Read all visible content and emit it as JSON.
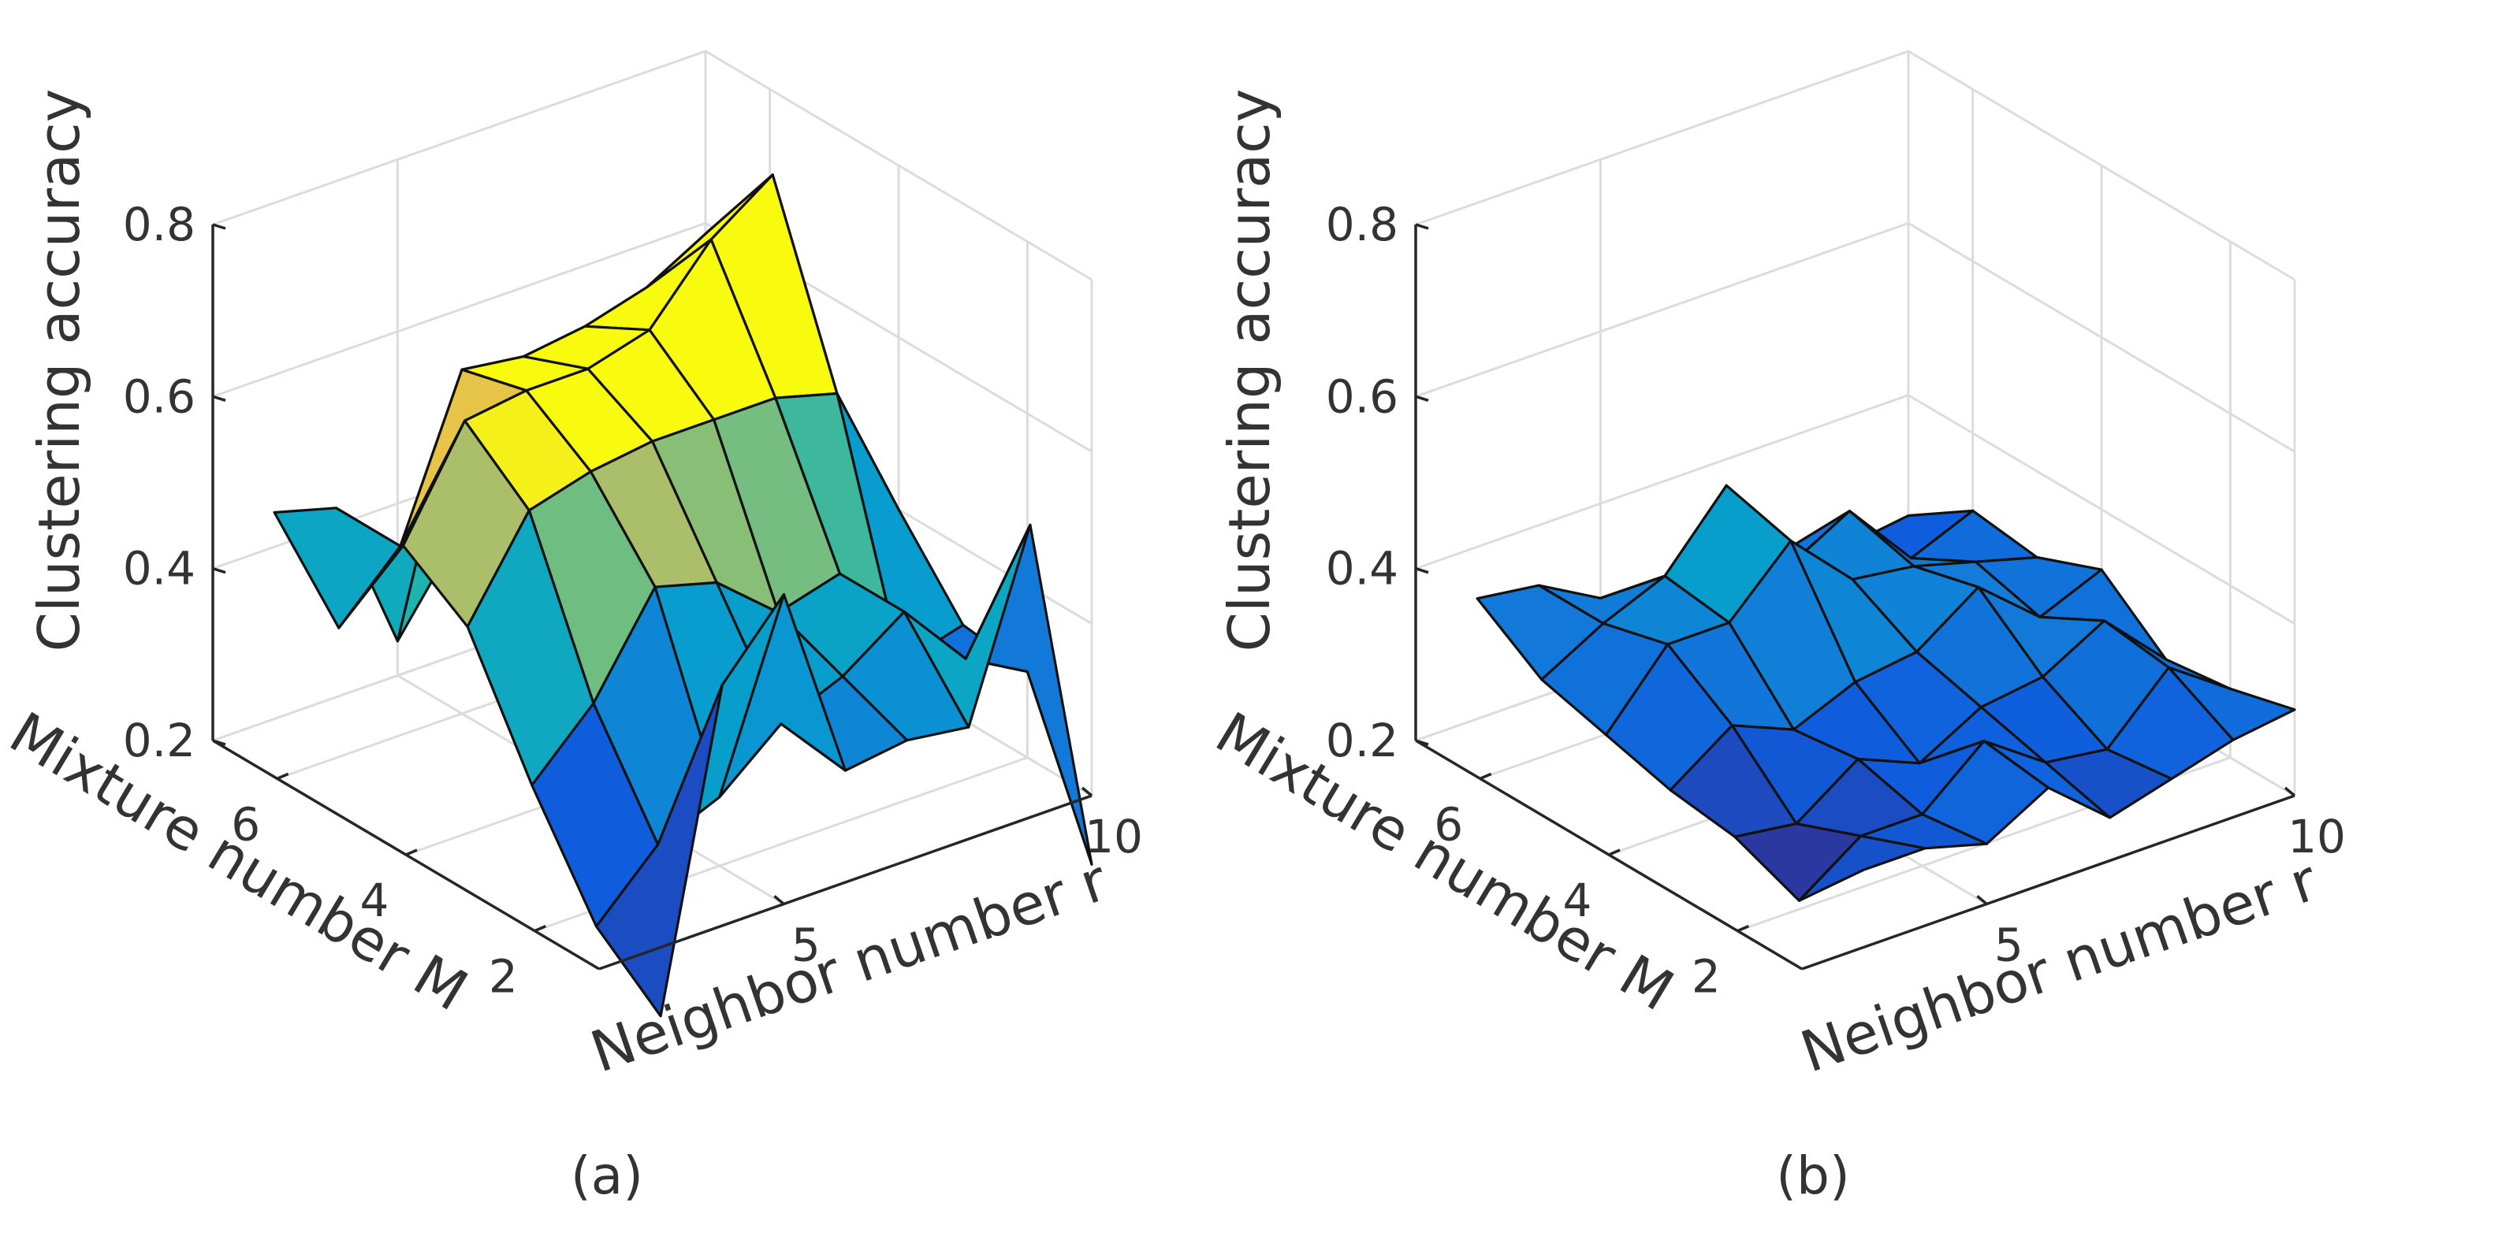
{
  "chart_data": [
    {
      "type": "surface",
      "panel_label": "(a)",
      "xlabel": "Neighbor number r",
      "ylabel": "Mixture number M",
      "zlabel": "Clustering accuracy",
      "r_values": [
        3,
        4,
        5,
        6,
        7,
        8,
        9,
        10
      ],
      "M_values": [
        1,
        2,
        3,
        4,
        5,
        6,
        7
      ],
      "x_ticks": [
        "5",
        "10"
      ],
      "y_ticks": [
        "2",
        "4",
        "6"
      ],
      "z_ticks": [
        "0.2",
        "0.4",
        "0.6",
        "0.8"
      ],
      "zlim": [
        0.2,
        0.8
      ],
      "z": [
        [
          0.12,
          0.48,
          0.56,
          0.33,
          0.34,
          0.33,
          0.54,
          0.12
        ],
        [
          0.18,
          0.25,
          0.28,
          0.34,
          0.37,
          0.42,
          0.34,
          0.3
        ],
        [
          0.3,
          0.37,
          0.48,
          0.46,
          0.4,
          0.42,
          0.29,
          0.31
        ],
        [
          0.44,
          0.55,
          0.57,
          0.58,
          0.58,
          0.58,
          0.56,
          0.4
        ],
        [
          0.49,
          0.61,
          0.62,
          0.62,
          0.64,
          0.72,
          0.77,
          0.36
        ],
        [
          0.35,
          0.42,
          0.6,
          0.59,
          0.6,
          0.62,
          0.66,
          0.38
        ],
        [
          0.44,
          0.42,
          0.24,
          0.34,
          0.31,
          0.33,
          0.29,
          0.26
        ]
      ]
    },
    {
      "type": "surface",
      "panel_label": "(b)",
      "xlabel": "Neighbor number r",
      "ylabel": "Mixture number M",
      "zlabel": "Clustering accuracy",
      "r_values": [
        3,
        4,
        5,
        6,
        7,
        8,
        9,
        10
      ],
      "M_values": [
        1,
        2,
        3,
        4,
        5,
        6,
        7
      ],
      "x_ticks": [
        "5",
        "10"
      ],
      "y_ticks": [
        "2",
        "4",
        "6"
      ],
      "z_ticks": [
        "0.2",
        "0.4",
        "0.6",
        "0.8"
      ],
      "zlim": [
        0.2,
        0.8
      ],
      "z": [
        [
          0.29,
          0.29,
          0.27,
          0.31,
          0.25,
          0.27,
          0.29,
          0.3
        ],
        [
          0.21,
          0.26,
          0.26,
          0.32,
          0.27,
          0.26,
          0.33,
          0.28
        ],
        [
          0.24,
          0.23,
          0.28,
          0.25,
          0.29,
          0.3,
          0.34,
          0.27
        ],
        [
          0.25,
          0.3,
          0.27,
          0.3,
          0.31,
          0.36,
          0.3,
          0.33
        ],
        [
          0.27,
          0.35,
          0.35,
          0.42,
          0.35,
          0.34,
          0.32,
          0.3
        ],
        [
          0.29,
          0.33,
          0.36,
          0.44,
          0.32,
          0.36,
          0.28,
          0.31
        ],
        [
          0.34,
          0.33,
          0.29,
          0.28,
          0.3,
          0.27,
          0.25,
          0.26
        ]
      ]
    }
  ]
}
